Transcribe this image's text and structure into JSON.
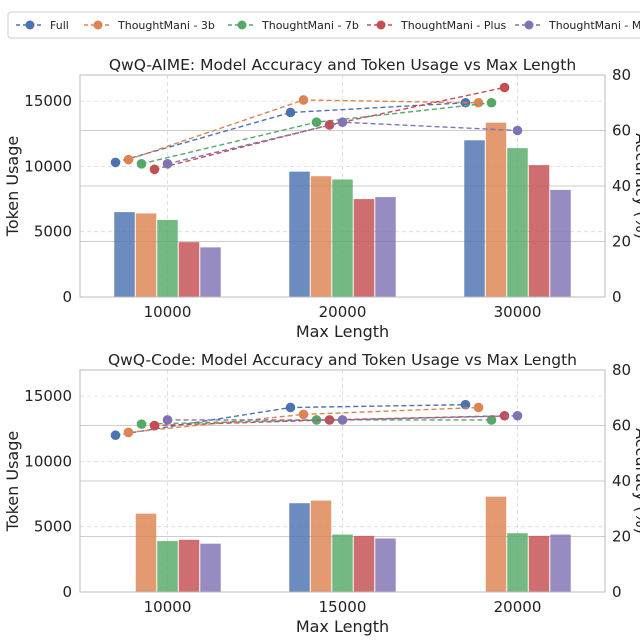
{
  "legend": {
    "items": [
      {
        "name": "Full",
        "color": "#4c72b0"
      },
      {
        "name": "ThoughtMani - 3b",
        "color": "#dd8452"
      },
      {
        "name": "ThoughtMani - 7b",
        "color": "#55a868"
      },
      {
        "name": "ThoughtMani - Plus",
        "color": "#c44e52"
      },
      {
        "name": "ThoughtMani - Max",
        "color": "#8172b3"
      }
    ]
  },
  "chart_data": [
    {
      "type": "bar+line",
      "title": "QwQ-AIME: Model Accuracy and Token Usage vs Max Length",
      "xlabel": "Max Length",
      "ylabel": "Token Usage",
      "y2label": "Accuracy (%)",
      "categories": [
        "10000",
        "20000",
        "30000"
      ],
      "ylim": [
        0,
        17000
      ],
      "y2lim": [
        0,
        80
      ],
      "yticks": [
        0,
        5000,
        10000,
        15000
      ],
      "yticklabels": [
        "0",
        "5000",
        "10000",
        "15000"
      ],
      "y2ticks": [
        0,
        20,
        40,
        60,
        80
      ],
      "y2ticklabels": [
        "0",
        "20",
        "40",
        "60",
        "80"
      ],
      "grid": true,
      "series": [
        {
          "name": "Full",
          "color": "#4c72b0",
          "tokens": [
            6500,
            9600,
            12000
          ],
          "accuracy": [
            48.5,
            66.5,
            70
          ]
        },
        {
          "name": "ThoughtMani - 3b",
          "color": "#dd8452",
          "tokens": [
            6400,
            9250,
            13350
          ],
          "accuracy": [
            49.5,
            71,
            70
          ]
        },
        {
          "name": "ThoughtMani - 7b",
          "color": "#55a868",
          "tokens": [
            5900,
            9000,
            11400
          ],
          "accuracy": [
            48,
            63,
            70
          ]
        },
        {
          "name": "ThoughtMani - Plus",
          "color": "#c44e52",
          "tokens": [
            4200,
            7500,
            10100
          ],
          "accuracy": [
            46,
            62,
            75.5
          ]
        },
        {
          "name": "ThoughtMani - Max",
          "color": "#8172b3",
          "tokens": [
            3800,
            7650,
            8200
          ],
          "accuracy": [
            48,
            63,
            60
          ]
        }
      ]
    },
    {
      "type": "bar+line",
      "title": "QwQ-Code: Model Accuracy and Token Usage vs Max Length",
      "xlabel": "Max Length",
      "ylabel": "Token Usage",
      "y2label": "Accuracy (%)",
      "categories": [
        "10000",
        "15000",
        "20000"
      ],
      "ylim": [
        0,
        17000
      ],
      "y2lim": [
        0,
        80
      ],
      "yticks": [
        0,
        5000,
        10000,
        15000
      ],
      "yticklabels": [
        "0",
        "5000",
        "10000",
        "15000"
      ],
      "y2ticks": [
        0,
        20,
        40,
        60,
        80
      ],
      "y2ticklabels": [
        "0",
        "20",
        "40",
        "60",
        "80"
      ],
      "grid": true,
      "series": [
        {
          "name": "Full",
          "color": "#4c72b0",
          "tokens": [
            null,
            6800,
            null
          ],
          "accuracy": [
            56.5,
            66.5,
            67.5
          ]
        },
        {
          "name": "ThoughtMani - 3b",
          "color": "#dd8452",
          "tokens": [
            6000,
            7000,
            7300
          ],
          "accuracy": [
            57.5,
            64,
            66.5
          ]
        },
        {
          "name": "ThoughtMani - 7b",
          "color": "#55a868",
          "tokens": [
            3900,
            4400,
            4500
          ],
          "accuracy": [
            60.5,
            62,
            62
          ]
        },
        {
          "name": "ThoughtMani - Plus",
          "color": "#c44e52",
          "tokens": [
            4000,
            4300,
            4300
          ],
          "accuracy": [
            60,
            62,
            63.5
          ]
        },
        {
          "name": "ThoughtMani - Max",
          "color": "#8172b3",
          "tokens": [
            3700,
            4100,
            4400
          ],
          "accuracy": [
            62,
            62,
            63.5
          ]
        }
      ]
    }
  ]
}
